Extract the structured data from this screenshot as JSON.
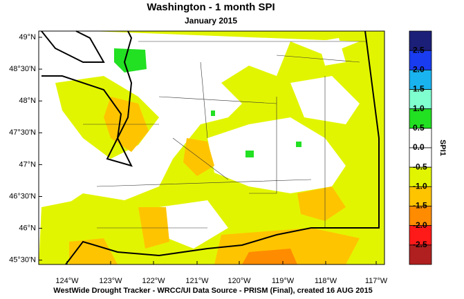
{
  "title": "Washington - 1 month SPI",
  "subtitle": "January 2015",
  "lat_labels": [
    "49°N",
    "48°30'N",
    "48°N",
    "47°30'N",
    "47°N",
    "46°30'N",
    "46°N",
    "45°30'N"
  ],
  "lon_labels": [
    "124°W",
    "123°W",
    "122°W",
    "121°W",
    "120°W",
    "119°W",
    "118°W",
    "117°W"
  ],
  "colorbar": {
    "title": "SPI1",
    "labels": [
      "2.5",
      "2.0",
      "1.5",
      "1.0",
      "0.5",
      "0.0",
      "-0.5",
      "-1.0",
      "-1.5",
      "-2.0",
      "-2.5"
    ],
    "colors": [
      "#1c1f78",
      "#1a3cf0",
      "#19b4f0",
      "#7fffd0",
      "#22e022",
      "#ffffff",
      "#ffffff",
      "#e2f500",
      "#ffc400",
      "#ff8c00",
      "#ff1a1a",
      "#b02020"
    ]
  },
  "footer": "WestWide Drought Tracker - WRCC/UI  Data Source - PRISM (Final), created 16 AUG 2015"
}
